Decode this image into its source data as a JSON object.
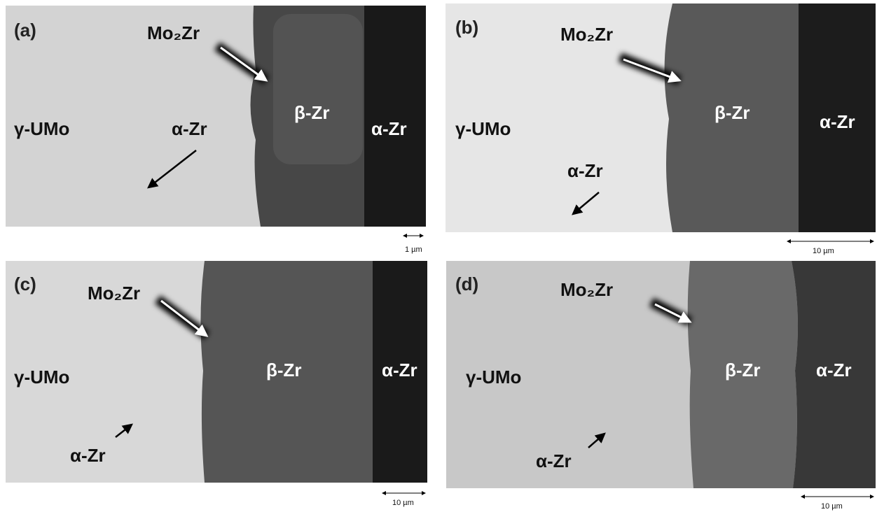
{
  "panels": [
    {
      "label": "(a)",
      "mo2zr": "Mo₂Zr",
      "umo": "γ-UMo",
      "alpha_zr_in": "α-Zr",
      "beta_zr": "β-Zr",
      "alpha_zr": "α-Zr",
      "scale": "1 µm"
    },
    {
      "label": "(b)",
      "mo2zr": "Mo₂Zr",
      "umo": "γ-UMo",
      "alpha_zr_in": "α-Zr",
      "beta_zr": "β-Zr",
      "alpha_zr": "α-Zr",
      "scale": "10 µm"
    },
    {
      "label": "(c)",
      "mo2zr": "Mo₂Zr",
      "umo": "γ-UMo",
      "alpha_zr_in": "α-Zr",
      "beta_zr": "β-Zr",
      "alpha_zr": "α-Zr",
      "scale": "10 µm"
    },
    {
      "label": "(d)",
      "mo2zr": "Mo₂Zr",
      "umo": "γ-UMo",
      "alpha_zr_in": "α-Zr",
      "beta_zr": "β-Zr",
      "alpha_zr": "α-Zr",
      "scale": "10 µm"
    }
  ]
}
